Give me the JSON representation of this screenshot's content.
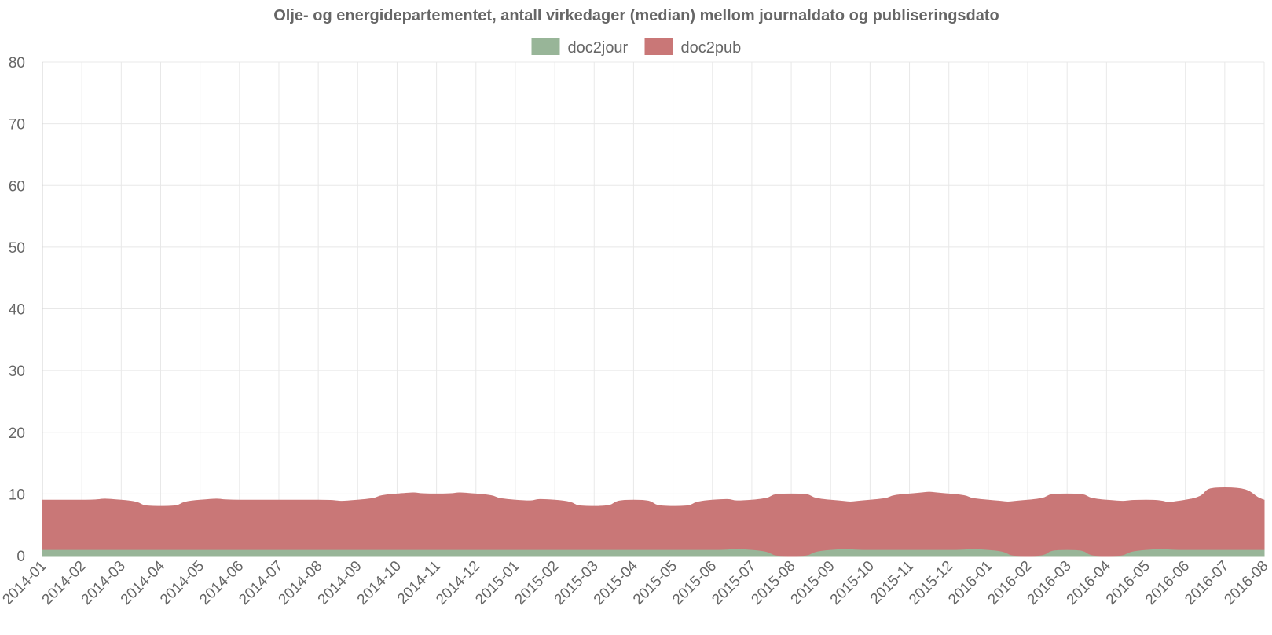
{
  "chart_data": {
    "type": "area",
    "title": "Olje- og energidepartementet, antall virkedager (median) mellom journaldato og publiseringsdato",
    "xlabel": "",
    "ylabel": "",
    "ylim": [
      0,
      80
    ],
    "yticks": [
      0,
      10,
      20,
      30,
      40,
      50,
      60,
      70,
      80
    ],
    "grid": true,
    "legend_position": "top",
    "stacked": true,
    "categories": [
      "2014-01",
      "2014-02",
      "2014-03",
      "2014-04",
      "2014-05",
      "2014-06",
      "2014-07",
      "2014-08",
      "2014-09",
      "2014-10",
      "2014-11",
      "2014-12",
      "2015-01",
      "2015-02",
      "2015-03",
      "2015-04",
      "2015-05",
      "2015-06",
      "2015-07",
      "2015-08",
      "2015-09",
      "2015-10",
      "2015-11",
      "2015-12",
      "2016-01",
      "2016-02",
      "2016-03",
      "2016-04",
      "2016-05",
      "2016-06",
      "2016-07",
      "2016-08"
    ],
    "series": [
      {
        "name": "doc2jour",
        "color": "#98b598",
        "values": [
          1,
          1,
          1,
          1,
          1,
          1,
          1,
          1,
          1,
          1,
          1,
          1,
          1,
          1,
          1,
          1,
          1,
          1,
          1,
          0,
          1,
          1,
          1,
          1,
          1,
          0,
          1,
          0,
          1,
          1,
          1,
          1
        ]
      },
      {
        "name": "doc2pub",
        "color": "#c97777",
        "values": [
          8,
          8,
          8,
          7,
          8,
          8,
          8,
          8,
          8,
          9,
          9,
          9,
          8,
          8,
          7,
          8,
          7,
          8,
          8,
          10,
          8,
          8,
          9,
          9,
          8,
          9,
          9,
          9,
          8,
          8,
          10,
          8
        ]
      }
    ]
  }
}
